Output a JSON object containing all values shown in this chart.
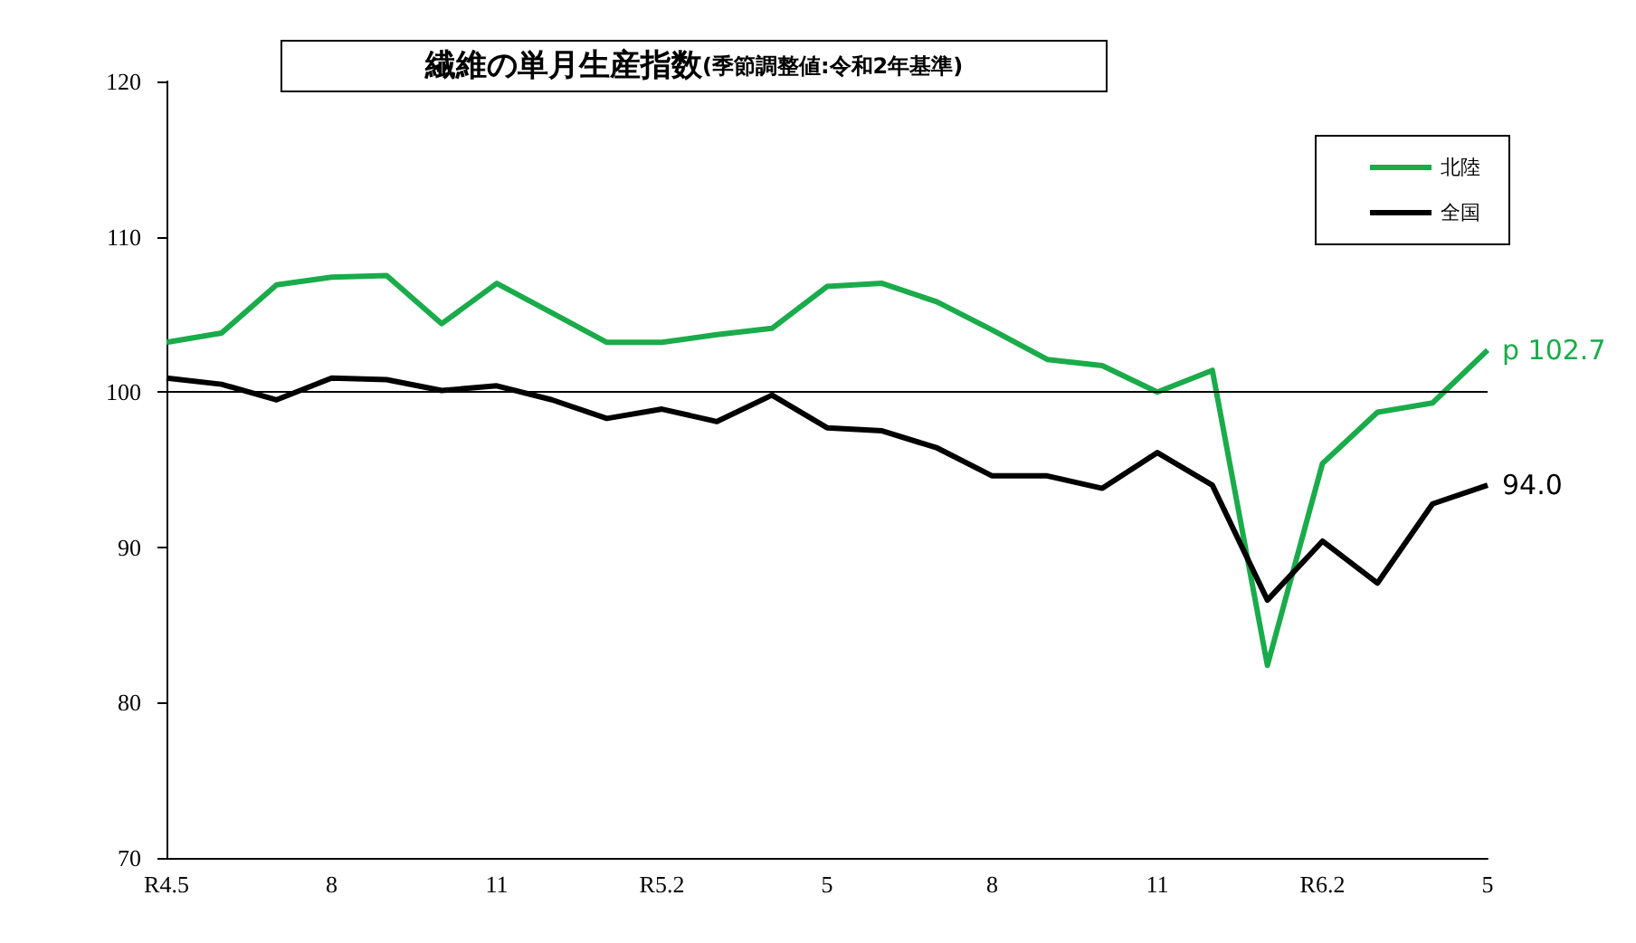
{
  "chart_data": {
    "type": "line",
    "title": "繊維の単月生産指数",
    "subtitle": "(季節調整値:令和2年基準)",
    "categories": [
      "R4.5",
      null,
      null,
      "8",
      null,
      null,
      "11",
      null,
      null,
      "R5.2",
      null,
      null,
      "5",
      null,
      null,
      "8",
      null,
      null,
      "11",
      null,
      null,
      "R6.2",
      null,
      null,
      "5"
    ],
    "series": [
      {
        "name": "北陸",
        "color": "#1aab4a",
        "values": [
          103.2,
          103.8,
          106.9,
          107.4,
          107.5,
          104.4,
          107.0,
          105.1,
          103.2,
          103.2,
          103.7,
          104.1,
          106.8,
          107.0,
          105.8,
          104.0,
          102.1,
          101.7,
          100.0,
          101.4,
          82.4,
          95.4,
          98.7,
          99.3,
          102.7
        ],
        "value_labels": [
          null,
          null,
          null,
          null,
          null,
          null,
          null,
          null,
          null,
          null,
          null,
          null,
          null,
          null,
          null,
          null,
          null,
          null,
          null,
          null,
          null,
          null,
          null,
          null,
          "p 102.7"
        ]
      },
      {
        "name": "全国",
        "color": "#000000",
        "values": [
          100.9,
          100.5,
          99.5,
          100.9,
          100.8,
          100.1,
          100.4,
          99.5,
          98.3,
          98.9,
          98.1,
          99.8,
          97.7,
          97.5,
          96.4,
          94.6,
          94.6,
          93.8,
          96.1,
          94.0,
          86.6,
          90.4,
          87.7,
          92.8,
          94.0
        ],
        "value_labels": [
          null,
          null,
          null,
          null,
          null,
          null,
          null,
          null,
          null,
          null,
          null,
          null,
          null,
          null,
          null,
          null,
          null,
          null,
          null,
          null,
          null,
          null,
          null,
          null,
          "94.0"
        ]
      }
    ],
    "ylim": [
      70,
      120
    ],
    "yticks": [
      70,
      80,
      90,
      100,
      110,
      120
    ],
    "ref_lines": [
      {
        "axis": "y",
        "value": 100,
        "color": "#000000"
      }
    ],
    "grid": false,
    "legend": "top right",
    "marker": "none",
    "line_style": "solid"
  }
}
